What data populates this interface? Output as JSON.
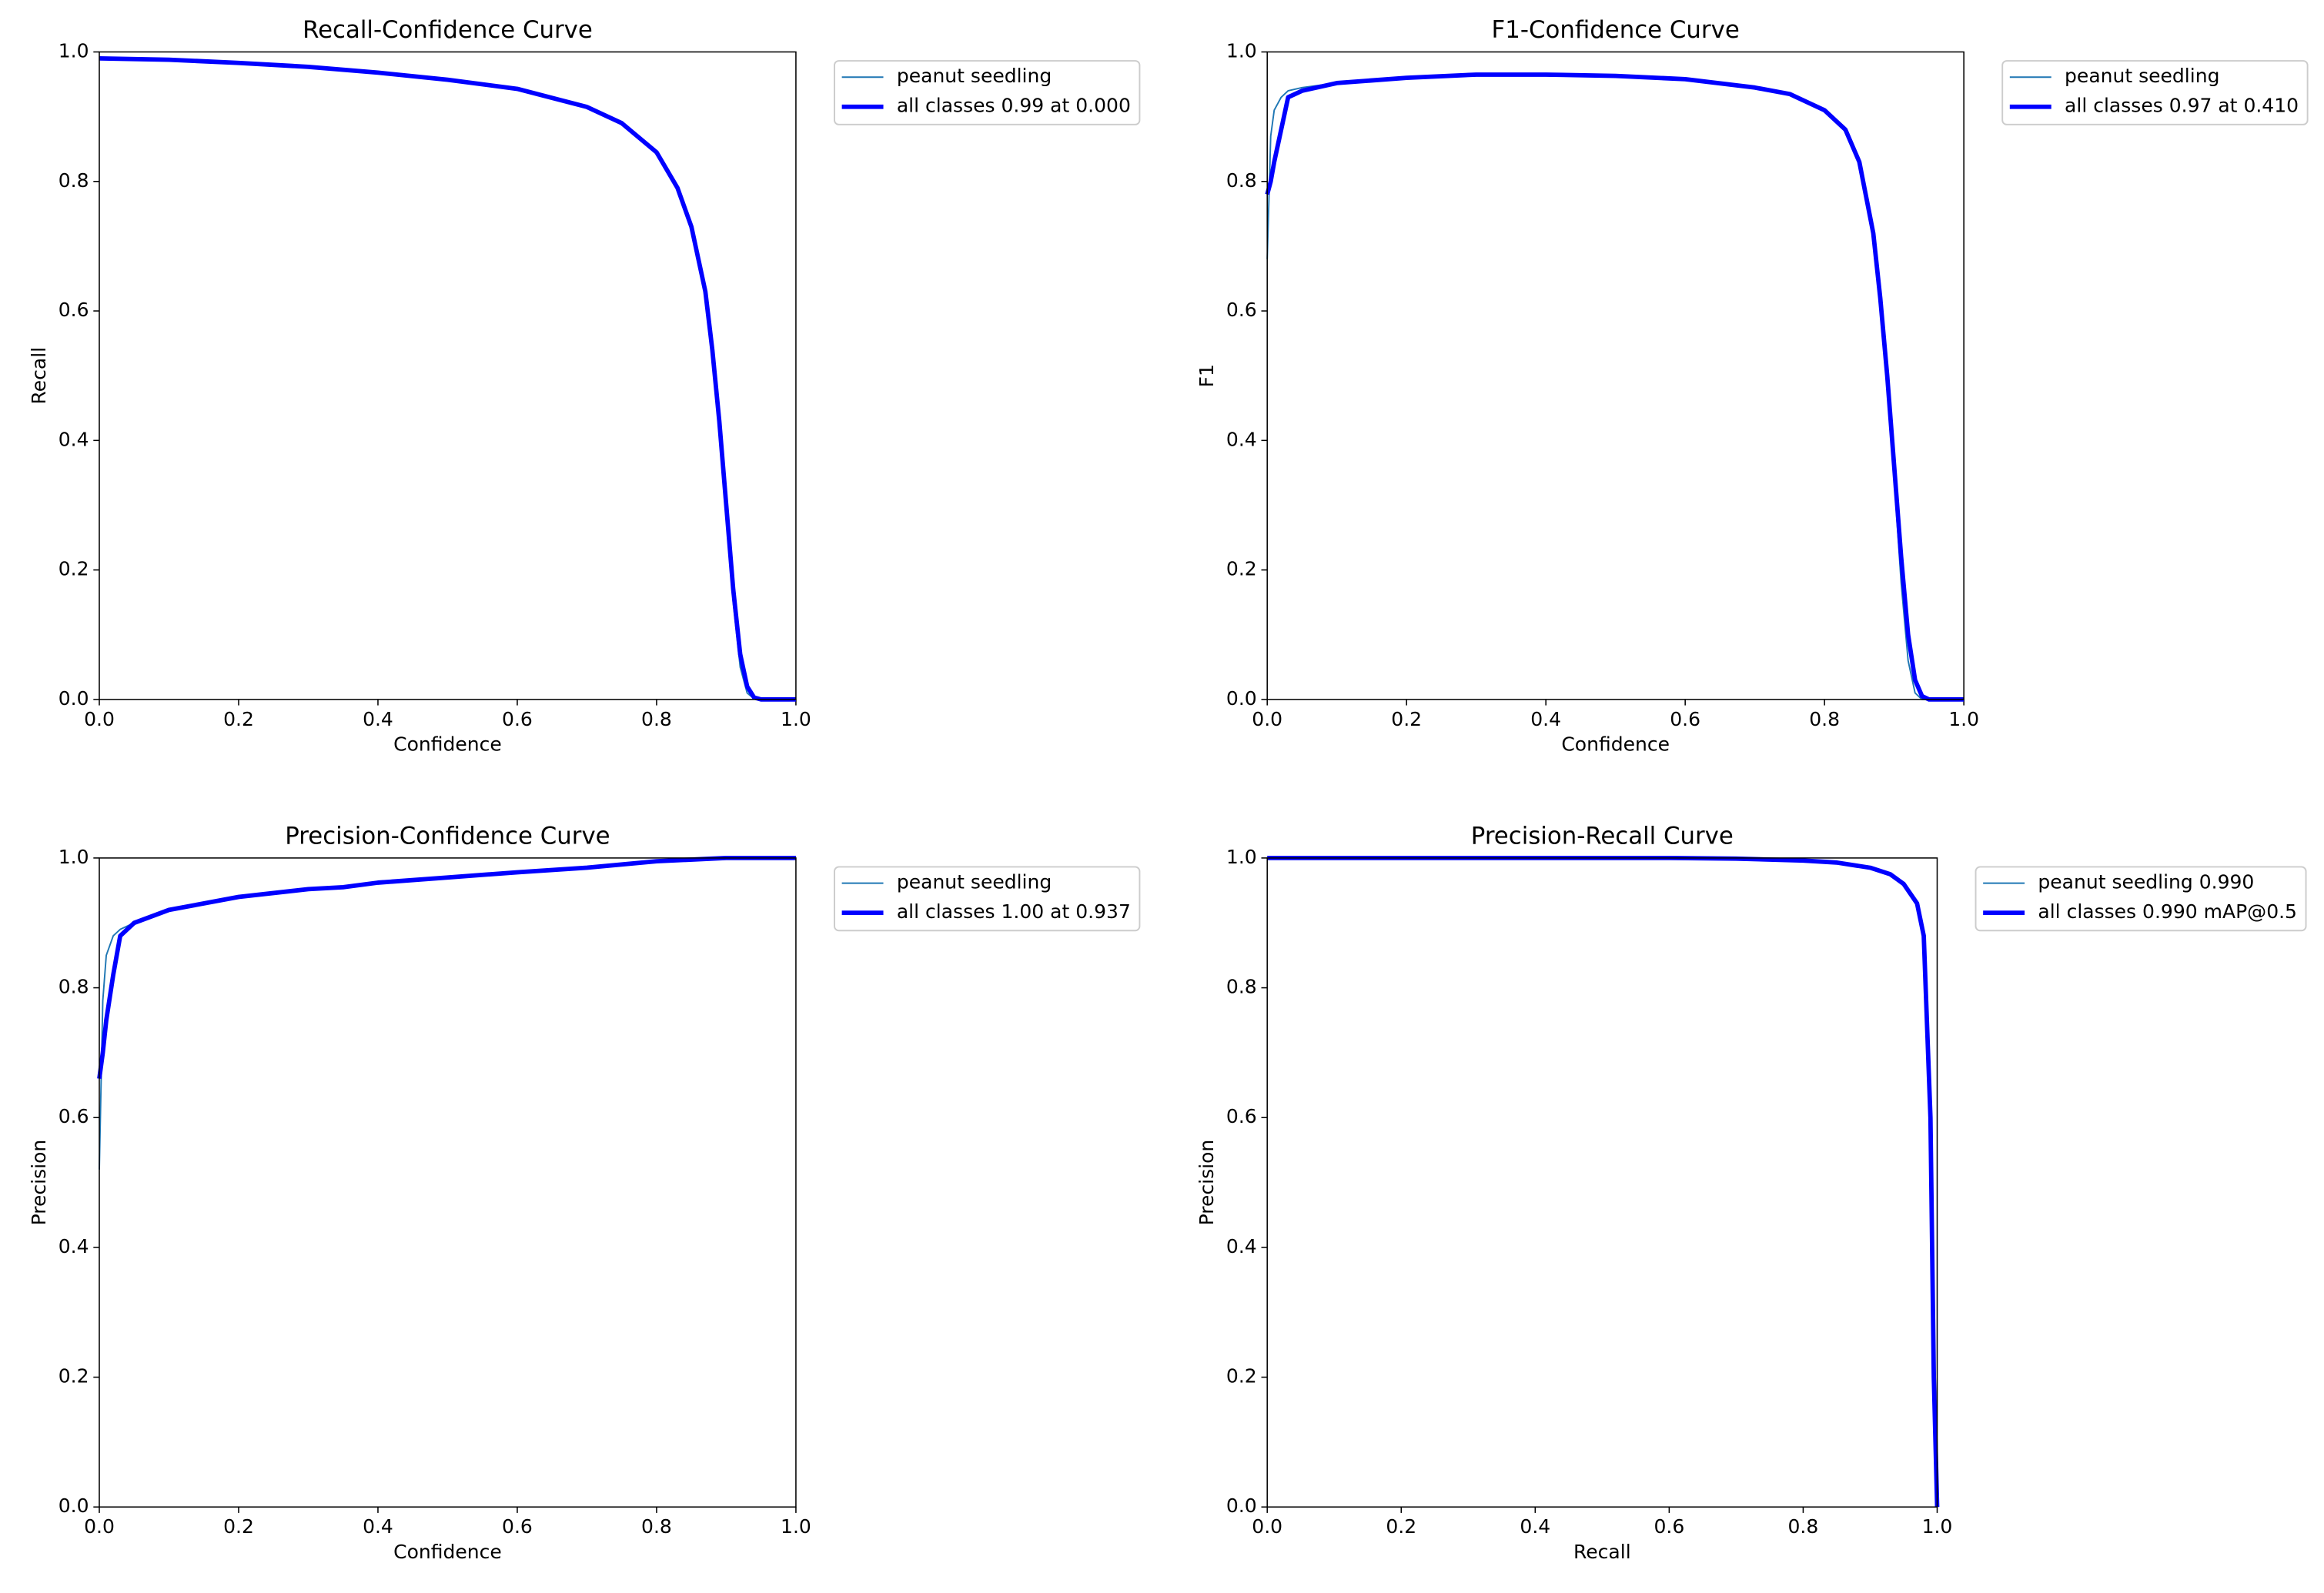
{
  "chart_data": [
    {
      "type": "line",
      "title": "Recall-Confidence Curve",
      "xlabel": "Confidence",
      "ylabel": "Recall",
      "x": [
        0,
        0.1,
        0.2,
        0.3,
        0.4,
        0.5,
        0.6,
        0.7,
        0.75,
        0.8,
        0.83,
        0.85,
        0.87,
        0.88,
        0.89,
        0.9,
        0.91,
        0.92,
        0.93,
        0.94,
        0.95,
        1.0
      ],
      "series": [
        {
          "name": "peanut seedling",
          "color": "#1f77b4",
          "linewidth": 1,
          "values": [
            0.99,
            0.988,
            0.983,
            0.977,
            0.968,
            0.957,
            0.943,
            0.915,
            0.89,
            0.845,
            0.79,
            0.73,
            0.63,
            0.54,
            0.43,
            0.3,
            0.15,
            0.05,
            0.01,
            0.001,
            0,
            0
          ]
        },
        {
          "name": "all classes 0.99 at 0.000",
          "color": "#0000ff",
          "linewidth": 3,
          "values": [
            0.99,
            0.988,
            0.983,
            0.977,
            0.968,
            0.957,
            0.943,
            0.915,
            0.89,
            0.845,
            0.79,
            0.73,
            0.63,
            0.54,
            0.43,
            0.3,
            0.17,
            0.07,
            0.02,
            0.003,
            0,
            0
          ]
        }
      ],
      "xlim": [
        0,
        1
      ],
      "ylim": [
        0,
        1
      ],
      "xticks": [
        {
          "value": 0,
          "label": "0.0"
        },
        {
          "value": 0.2,
          "label": "0.2"
        },
        {
          "value": 0.4,
          "label": "0.4"
        },
        {
          "value": 0.6,
          "label": "0.6"
        },
        {
          "value": 0.8,
          "label": "0.8"
        },
        {
          "value": 1,
          "label": "1.0"
        }
      ],
      "yticks": [
        {
          "value": 0,
          "label": "0.0"
        },
        {
          "value": 0.2,
          "label": "0.2"
        },
        {
          "value": 0.4,
          "label": "0.4"
        },
        {
          "value": 0.6,
          "label": "0.6"
        },
        {
          "value": 0.8,
          "label": "0.8"
        },
        {
          "value": 1,
          "label": "1.0"
        }
      ],
      "legend": "outside upper right"
    },
    {
      "type": "line",
      "title": "F1-Confidence Curve",
      "xlabel": "Confidence",
      "ylabel": "F1",
      "x": [
        0,
        0.005,
        0.01,
        0.02,
        0.03,
        0.05,
        0.1,
        0.2,
        0.3,
        0.4,
        0.5,
        0.6,
        0.7,
        0.75,
        0.8,
        0.83,
        0.85,
        0.87,
        0.88,
        0.89,
        0.9,
        0.91,
        0.92,
        0.93,
        0.94,
        0.95,
        1.0
      ],
      "series": [
        {
          "name": "peanut seedling",
          "color": "#1f77b4",
          "linewidth": 1,
          "values": [
            0.68,
            0.87,
            0.91,
            0.93,
            0.94,
            0.945,
            0.952,
            0.96,
            0.965,
            0.965,
            0.963,
            0.958,
            0.945,
            0.935,
            0.91,
            0.88,
            0.83,
            0.71,
            0.61,
            0.49,
            0.34,
            0.18,
            0.06,
            0.01,
            0,
            0,
            0
          ]
        },
        {
          "name": "all classes 0.97 at 0.410",
          "color": "#0000ff",
          "linewidth": 3,
          "values": [
            0.78,
            0.8,
            0.83,
            0.88,
            0.93,
            0.94,
            0.952,
            0.96,
            0.965,
            0.965,
            0.963,
            0.958,
            0.945,
            0.935,
            0.91,
            0.88,
            0.83,
            0.72,
            0.62,
            0.5,
            0.36,
            0.22,
            0.1,
            0.03,
            0.005,
            0,
            0
          ]
        }
      ],
      "xlim": [
        0,
        1
      ],
      "ylim": [
        0,
        1
      ],
      "xticks": [
        {
          "value": 0,
          "label": "0.0"
        },
        {
          "value": 0.2,
          "label": "0.2"
        },
        {
          "value": 0.4,
          "label": "0.4"
        },
        {
          "value": 0.6,
          "label": "0.6"
        },
        {
          "value": 0.8,
          "label": "0.8"
        },
        {
          "value": 1,
          "label": "1.0"
        }
      ],
      "yticks": [
        {
          "value": 0,
          "label": "0.0"
        },
        {
          "value": 0.2,
          "label": "0.2"
        },
        {
          "value": 0.4,
          "label": "0.4"
        },
        {
          "value": 0.6,
          "label": "0.6"
        },
        {
          "value": 0.8,
          "label": "0.8"
        },
        {
          "value": 1,
          "label": "1.0"
        }
      ],
      "legend": "outside upper right"
    },
    {
      "type": "line",
      "title": "Precision-Confidence Curve",
      "xlabel": "Confidence",
      "ylabel": "Precision",
      "x": [
        0,
        0.005,
        0.01,
        0.02,
        0.03,
        0.05,
        0.1,
        0.2,
        0.3,
        0.35,
        0.4,
        0.5,
        0.6,
        0.7,
        0.8,
        0.9,
        1.0
      ],
      "series": [
        {
          "name": "peanut seedling",
          "color": "#1f77b4",
          "linewidth": 1,
          "values": [
            0.52,
            0.78,
            0.85,
            0.88,
            0.89,
            0.9,
            0.92,
            0.94,
            0.952,
            0.955,
            0.962,
            0.97,
            0.978,
            0.985,
            0.995,
            1.0,
            1.0
          ]
        },
        {
          "name": "all classes 1.00 at 0.937",
          "color": "#0000ff",
          "linewidth": 3,
          "values": [
            0.66,
            0.7,
            0.75,
            0.82,
            0.88,
            0.9,
            0.92,
            0.94,
            0.952,
            0.955,
            0.962,
            0.97,
            0.978,
            0.985,
            0.995,
            1.0,
            1.0
          ]
        }
      ],
      "xlim": [
        0,
        1
      ],
      "ylim": [
        0,
        1
      ],
      "xticks": [
        {
          "value": 0,
          "label": "0.0"
        },
        {
          "value": 0.2,
          "label": "0.2"
        },
        {
          "value": 0.4,
          "label": "0.4"
        },
        {
          "value": 0.6,
          "label": "0.6"
        },
        {
          "value": 0.8,
          "label": "0.8"
        },
        {
          "value": 1,
          "label": "1.0"
        }
      ],
      "yticks": [
        {
          "value": 0,
          "label": "0.0"
        },
        {
          "value": 0.2,
          "label": "0.2"
        },
        {
          "value": 0.4,
          "label": "0.4"
        },
        {
          "value": 0.6,
          "label": "0.6"
        },
        {
          "value": 0.8,
          "label": "0.8"
        },
        {
          "value": 1,
          "label": "1.0"
        }
      ],
      "legend": "outside upper right"
    },
    {
      "type": "line",
      "title": "Precision-Recall Curve",
      "xlabel": "Recall",
      "ylabel": "Precision",
      "x": [
        0,
        0.2,
        0.4,
        0.6,
        0.7,
        0.8,
        0.85,
        0.9,
        0.93,
        0.95,
        0.97,
        0.98,
        0.99,
        0.995,
        1.0
      ],
      "series": [
        {
          "name": "peanut seedling 0.990",
          "color": "#1f77b4",
          "linewidth": 1,
          "values": [
            1,
            1,
            1,
            1,
            0.999,
            0.996,
            0.993,
            0.985,
            0.975,
            0.96,
            0.93,
            0.88,
            0.6,
            0.2,
            0
          ]
        },
        {
          "name": "all classes 0.990 mAP@0.5",
          "color": "#0000ff",
          "linewidth": 3,
          "values": [
            1,
            1,
            1,
            1,
            0.999,
            0.996,
            0.993,
            0.985,
            0.975,
            0.96,
            0.93,
            0.88,
            0.6,
            0.2,
            0
          ]
        }
      ],
      "xlim": [
        0,
        1
      ],
      "ylim": [
        0,
        1
      ],
      "xticks": [
        {
          "value": 0,
          "label": "0.0"
        },
        {
          "value": 0.2,
          "label": "0.2"
        },
        {
          "value": 0.4,
          "label": "0.4"
        },
        {
          "value": 0.6,
          "label": "0.6"
        },
        {
          "value": 0.8,
          "label": "0.8"
        },
        {
          "value": 1,
          "label": "1.0"
        }
      ],
      "yticks": [
        {
          "value": 0,
          "label": "0.0"
        },
        {
          "value": 0.2,
          "label": "0.2"
        },
        {
          "value": 0.4,
          "label": "0.4"
        },
        {
          "value": 0.6,
          "label": "0.6"
        },
        {
          "value": 0.8,
          "label": "0.8"
        },
        {
          "value": 1,
          "label": "1.0"
        }
      ],
      "legend": "outside upper right"
    }
  ]
}
